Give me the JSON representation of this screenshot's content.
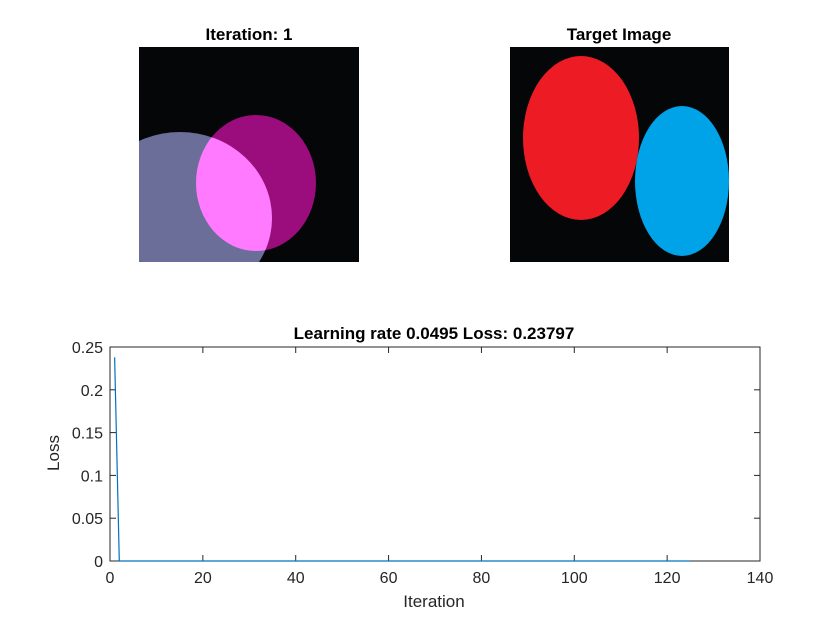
{
  "figure": {
    "background": "#ffffff"
  },
  "panels": {
    "current": {
      "title": "Iteration: 1",
      "background": "#050608",
      "shapes": [
        {
          "name": "ellipse-purple-magenta",
          "color": "#9b0c7c"
        },
        {
          "name": "ellipse-slate-blue",
          "color": "#6a6e98"
        },
        {
          "name": "ellipse-overlap-pink",
          "color": "#ff7afe"
        }
      ]
    },
    "target": {
      "title": "Target Image",
      "background": "#050608",
      "shapes": [
        {
          "name": "ellipse-red",
          "color": "#ed1c24"
        },
        {
          "name": "ellipse-blue",
          "color": "#00a2e8"
        }
      ]
    }
  },
  "chart_data": {
    "type": "line",
    "title": "Learning rate 0.0495  Loss: 0.23797",
    "xlabel": "Iteration",
    "ylabel": "Loss",
    "xlim": [
      0,
      140
    ],
    "ylim": [
      0,
      0.25
    ],
    "xticks": [
      0,
      20,
      40,
      60,
      80,
      100,
      120,
      140
    ],
    "xtick_labels": [
      "0",
      "20",
      "40",
      "60",
      "80",
      "100",
      "120",
      "140"
    ],
    "yticks": [
      0,
      0.05,
      0.1,
      0.15,
      0.2,
      0.25
    ],
    "ytick_labels": [
      "0",
      "0.05",
      "0.1",
      "0.15",
      "0.2",
      "0.25"
    ],
    "grid": false,
    "box": true,
    "line_color": "#0072bd",
    "series": [
      {
        "x": [
          1,
          2,
          125
        ],
        "y": [
          0.23797,
          0,
          0
        ]
      }
    ]
  }
}
